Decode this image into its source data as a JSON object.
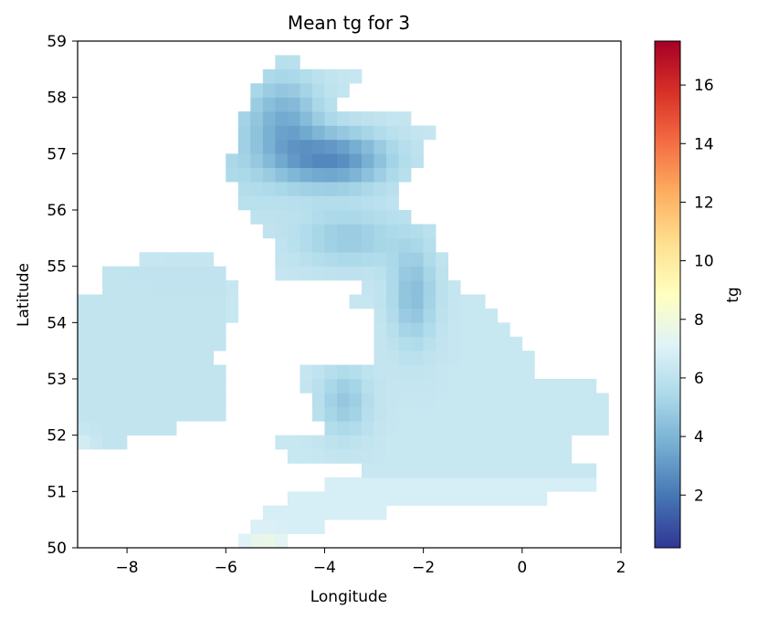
{
  "chart_data": {
    "type": "heatmap",
    "title": "Mean tg for 3",
    "xlabel": "Longitude",
    "ylabel": "Latitude",
    "xlim": [
      -9,
      2
    ],
    "ylim": [
      50,
      59
    ],
    "x_ticks": [
      -8,
      -6,
      -4,
      -2,
      0,
      2
    ],
    "x_tick_labels": [
      "−8",
      "−6",
      "−4",
      "−2",
      "0",
      "2"
    ],
    "y_ticks": [
      50,
      51,
      52,
      53,
      54,
      55,
      56,
      57,
      58,
      59
    ],
    "y_tick_labels": [
      "50",
      "51",
      "52",
      "53",
      "54",
      "55",
      "56",
      "57",
      "58",
      "59"
    ],
    "colorbar": {
      "label": "tg",
      "colormap": "RdYlBu_r",
      "range": [
        0.2,
        17.5
      ],
      "ticks": [
        2,
        4,
        6,
        8,
        10,
        12,
        14,
        16
      ],
      "tick_labels": [
        "2",
        "4",
        "6",
        "8",
        "10",
        "12",
        "14",
        "16"
      ]
    },
    "grid": false,
    "cell_size_deg": [
      0.25,
      0.25
    ],
    "approx_values": {
      "north_scotland_highlands": "1.5-3.5",
      "scotland_general": "3.5-5",
      "pennines_wales_uplands": "3.5-4.5",
      "england_lowlands": "5.5-6.5",
      "ireland": "5-6.5",
      "south_coast": "6.5-7.5"
    }
  }
}
